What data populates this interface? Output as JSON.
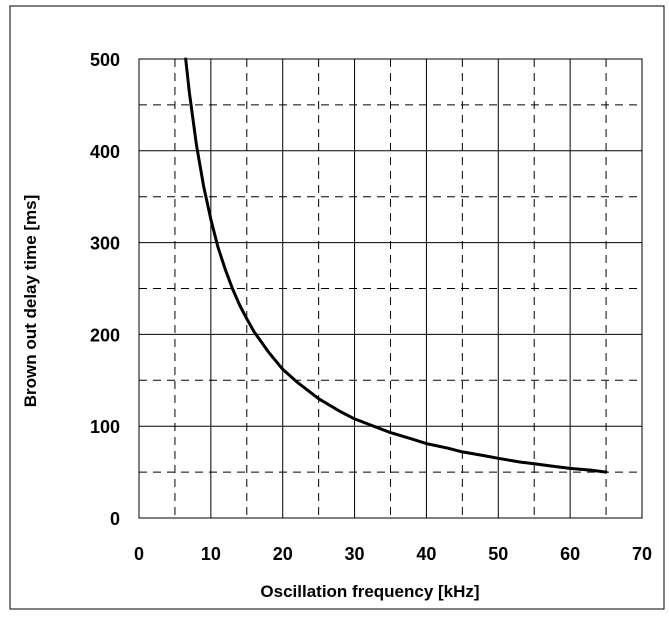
{
  "chart_data": {
    "type": "line",
    "title": "",
    "xlabel": "Oscillation frequency [kHz]",
    "ylabel": "Brown out  delay time [ms]",
    "xlim": [
      0,
      70
    ],
    "ylim": [
      0,
      500
    ],
    "x_ticks": [
      "0",
      "10",
      "20",
      "30",
      "40",
      "50",
      "60",
      "70"
    ],
    "y_ticks": [
      "0",
      "100",
      "200",
      "300",
      "400",
      "500"
    ],
    "grid": {
      "major": "solid",
      "minor": "dashed",
      "x_minor_step": 5,
      "y_minor_step": 50
    },
    "legend": "none",
    "series": [
      {
        "x": [
          6.5,
          7,
          8,
          9,
          10,
          11,
          12,
          13,
          14,
          15,
          16,
          18,
          20,
          22,
          25,
          28,
          30,
          32,
          35,
          38,
          40,
          43,
          45,
          48,
          50,
          53,
          55,
          58,
          60,
          63,
          65
        ],
        "y": [
          500,
          464,
          406,
          361,
          325,
          295,
          271,
          250,
          232,
          217,
          203,
          181,
          162,
          148,
          130,
          116,
          108,
          102,
          93,
          86,
          81,
          76,
          72,
          68,
          65,
          61,
          59,
          56,
          54,
          52,
          50
        ],
        "color": "#000000"
      }
    ]
  }
}
